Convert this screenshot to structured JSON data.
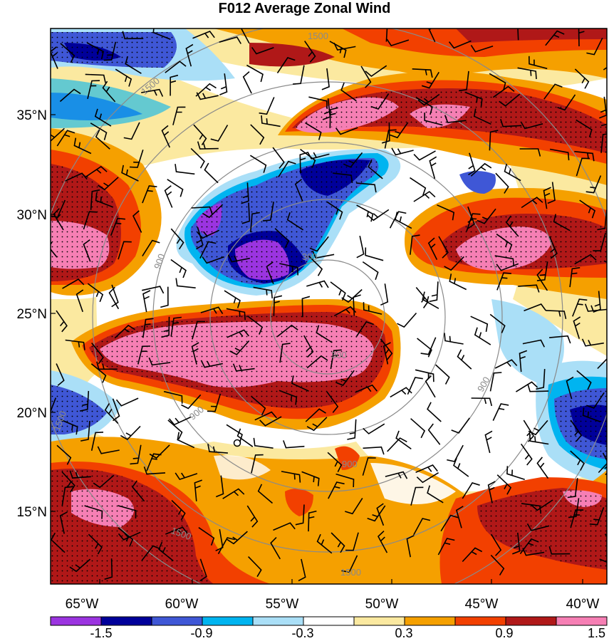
{
  "title": "F012 Average Zonal Wind",
  "lon_ticks": [
    "65°W",
    "60°W",
    "55°W",
    "50°W",
    "45°W",
    "40°W"
  ],
  "lat_ticks": [
    "35°N",
    "30°N",
    "25°N",
    "20°N",
    "15°N"
  ],
  "range_ring_labels": [
    "300",
    "300",
    "900",
    "900",
    "900",
    "900",
    "1500",
    "1500",
    "1500",
    "1500",
    "1500"
  ],
  "colorbar": {
    "labels": [
      "-1.5",
      "-0.9",
      "-0.3",
      "0.3",
      "0.9",
      "1.5"
    ],
    "colors": [
      "#9b34e0",
      "#00009a",
      "#3f57d6",
      "#00b4f0",
      "#aadff7",
      "#ffffff",
      "#fbe9a0",
      "#f5a000",
      "#f24000",
      "#b01818",
      "#f67fb4"
    ]
  },
  "colors": {
    "neg_strong": "#9b34e0",
    "neg_dark": "#00009a",
    "neg_mid": "#3f57d6",
    "neg_light": "#00b4f0",
    "neg_pale": "#aadff7",
    "neutral": "#ffffff",
    "pos_pale": "#fbe9a0",
    "pos_orange": "#f5a000",
    "pos_red": "#f24000",
    "pos_dark": "#b01818",
    "pos_pink": "#f67fb4"
  }
}
